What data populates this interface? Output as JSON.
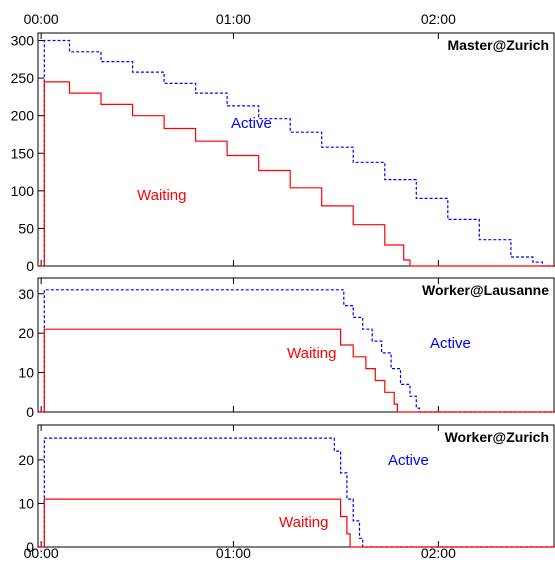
{
  "chart_data": {
    "type": "line",
    "x_ticks": [
      "00:00",
      "01:00",
      "02:00"
    ],
    "colors": {
      "active": "#0000ff",
      "waiting": "#ff0000",
      "axis": "#000000"
    },
    "panels": [
      {
        "title": "Master@Zurich",
        "ylim": [
          0,
          310
        ],
        "yticks": [
          0,
          50,
          100,
          150,
          200,
          250,
          300
        ],
        "series": [
          {
            "name": "Active",
            "style": "dashed",
            "points": [
              [
                0,
                0
              ],
              [
                2,
                0
              ],
              [
                2,
                300
              ],
              [
                6,
                300
              ],
              [
                10,
                285
              ],
              [
                20,
                272
              ],
              [
                30,
                258
              ],
              [
                40,
                243
              ],
              [
                50,
                230
              ],
              [
                60,
                213
              ],
              [
                70,
                196
              ],
              [
                80,
                178
              ],
              [
                90,
                158
              ],
              [
                100,
                138
              ],
              [
                110,
                115
              ],
              [
                120,
                90
              ],
              [
                130,
                62
              ],
              [
                140,
                35
              ],
              [
                150,
                12
              ],
              [
                157,
                5
              ],
              [
                160,
                0
              ],
              [
                164,
                0
              ]
            ]
          },
          {
            "name": "Waiting",
            "style": "solid",
            "points": [
              [
                0,
                0
              ],
              [
                2,
                0
              ],
              [
                2,
                245
              ],
              [
                6,
                245
              ],
              [
                10,
                230
              ],
              [
                20,
                215
              ],
              [
                30,
                200
              ],
              [
                40,
                183
              ],
              [
                50,
                166
              ],
              [
                60,
                147
              ],
              [
                70,
                127
              ],
              [
                80,
                104
              ],
              [
                90,
                80
              ],
              [
                100,
                55
              ],
              [
                110,
                28
              ],
              [
                116,
                8
              ],
              [
                118,
                0
              ],
              [
                164,
                0
              ]
            ]
          }
        ]
      },
      {
        "title": "Worker@Lausanne",
        "ylim": [
          0,
          34
        ],
        "yticks": [
          0,
          10,
          20,
          30
        ],
        "series": [
          {
            "name": "Active",
            "style": "dashed",
            "points": [
              [
                0,
                0
              ],
              [
                2,
                0
              ],
              [
                2,
                31
              ],
              [
                58,
                31
              ],
              [
                93,
                31
              ],
              [
                97,
                27
              ],
              [
                100,
                24
              ],
              [
                103,
                21
              ],
              [
                106,
                18
              ],
              [
                109,
                15
              ],
              [
                112,
                11
              ],
              [
                115,
                7
              ],
              [
                118,
                4
              ],
              [
                120,
                1
              ],
              [
                121,
                0
              ],
              [
                164,
                0
              ]
            ]
          },
          {
            "name": "Waiting",
            "style": "solid",
            "points": [
              [
                0,
                0
              ],
              [
                2,
                0
              ],
              [
                2,
                21
              ],
              [
                58,
                21
              ],
              [
                92,
                21
              ],
              [
                96,
                17
              ],
              [
                100,
                14
              ],
              [
                104,
                11
              ],
              [
                107,
                8
              ],
              [
                110,
                5
              ],
              [
                113,
                2
              ],
              [
                114,
                0
              ],
              [
                164,
                0
              ]
            ]
          }
        ]
      },
      {
        "title": "Worker@Zurich",
        "ylim": [
          0,
          28
        ],
        "yticks": [
          0,
          10,
          20
        ],
        "series": [
          {
            "name": "Active",
            "style": "dashed",
            "points": [
              [
                0,
                0
              ],
              [
                2,
                0
              ],
              [
                2,
                25
              ],
              [
                58,
                25
              ],
              [
                92,
                25
              ],
              [
                94,
                22
              ],
              [
                96,
                17
              ],
              [
                98,
                11
              ],
              [
                100,
                6
              ],
              [
                102,
                2
              ],
              [
                103,
                0
              ],
              [
                164,
                0
              ]
            ]
          },
          {
            "name": "Waiting",
            "style": "solid",
            "points": [
              [
                0,
                0
              ],
              [
                2,
                0
              ],
              [
                2,
                11
              ],
              [
                58,
                11
              ],
              [
                93,
                11
              ],
              [
                96,
                7
              ],
              [
                98,
                3
              ],
              [
                99,
                0
              ],
              [
                164,
                0
              ]
            ]
          }
        ]
      }
    ]
  }
}
